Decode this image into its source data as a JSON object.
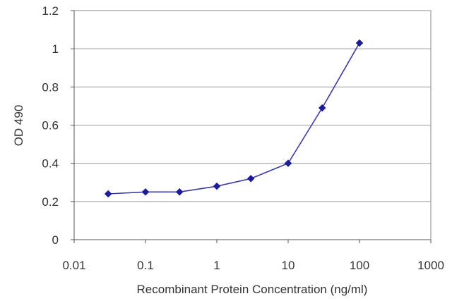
{
  "chart_data": {
    "type": "line",
    "title": "",
    "xlabel": "Recombinant Protein Concentration (ng/ml)",
    "ylabel": "OD 490",
    "x_scale": "log",
    "xlim": [
      0.01,
      1000
    ],
    "ylim": [
      0,
      1.2
    ],
    "x_ticks": [
      "0.01",
      "0.1",
      "1",
      "10",
      "100",
      "1000"
    ],
    "y_ticks": [
      "0",
      "0.2",
      "0.4",
      "0.6",
      "0.8",
      "1",
      "1.2"
    ],
    "grid": "horizontal",
    "legend": "none",
    "series": [
      {
        "color": "#3a3aa8",
        "marker": "diamond",
        "x": [
          0.03,
          0.1,
          0.3,
          1,
          3,
          10,
          30,
          100
        ],
        "y": [
          0.24,
          0.25,
          0.25,
          0.28,
          0.32,
          0.4,
          0.69,
          1.03
        ]
      }
    ]
  }
}
